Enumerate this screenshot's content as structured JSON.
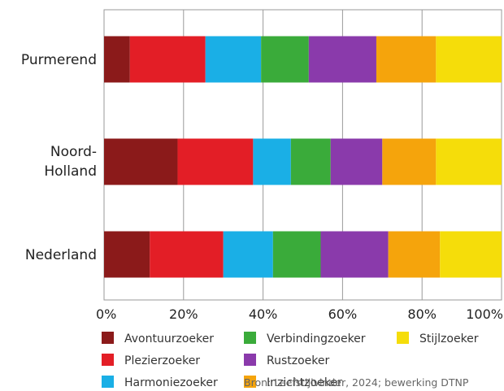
{
  "chart_data": {
    "type": "bar",
    "orientation": "horizontal",
    "stacked": "percent",
    "categories": [
      "Purmerend",
      "Noord-Holland",
      "Nederland"
    ],
    "series": [
      {
        "name": "Avontuurzoeker",
        "color": "#8b1a1a",
        "values": [
          6.5,
          18.5,
          11.5
        ]
      },
      {
        "name": "Plezierzoeker",
        "color": "#e31e26",
        "values": [
          19,
          19,
          18.5
        ]
      },
      {
        "name": "Harmoniezoeker",
        "color": "#1aafe6",
        "values": [
          14,
          9.5,
          12.5
        ]
      },
      {
        "name": "Verbindingzoeker",
        "color": "#3aab3a",
        "values": [
          12,
          10,
          12
        ]
      },
      {
        "name": "Rustzoeker",
        "color": "#8a3aab",
        "values": [
          17,
          13,
          17
        ]
      },
      {
        "name": "Inzichtzoeker",
        "color": "#f5a40c",
        "values": [
          15,
          13.5,
          13
        ]
      },
      {
        "name": "Stijlzoeker",
        "color": "#f5dd0a",
        "values": [
          16.5,
          16.5,
          15.5
        ]
      }
    ],
    "xlim": [
      0,
      100
    ],
    "xticks": [
      "0%",
      "20%",
      "40%",
      "60%",
      "80%",
      "100%"
    ],
    "grid": true,
    "legend_position": "bottom",
    "source": "Bron: Leefstijlvinder, 2024; bewerking DTNP"
  }
}
